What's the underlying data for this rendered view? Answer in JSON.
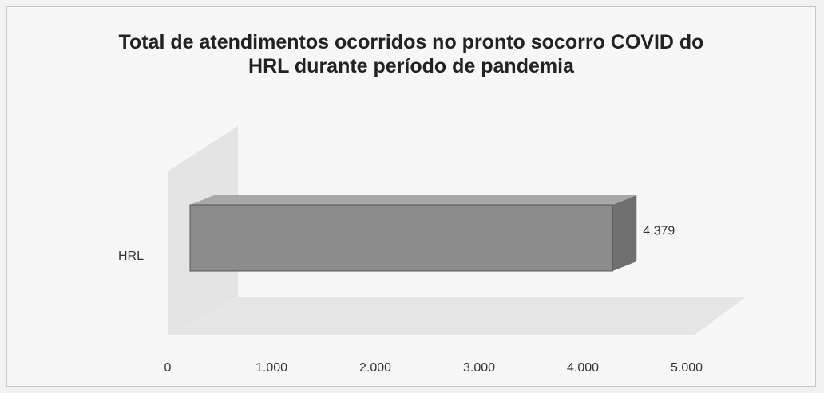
{
  "chart_data": {
    "type": "bar",
    "orientation": "horizontal",
    "title": "Total de atendimentos ocorridos no pronto socorro COVID do HRL durante período de pandemia",
    "categories": [
      "HRL"
    ],
    "values": [
      4379
    ],
    "value_labels": [
      "4.379"
    ],
    "color": "#8c8c8c",
    "xlim": [
      0,
      5000
    ],
    "xticks": [
      0,
      {
        "value": 1000,
        "label": "1.000"
      },
      {
        "value": 2000,
        "label": "2.000"
      },
      {
        "value": 3000,
        "label": "3.000"
      },
      {
        "value": 4000,
        "label": "4.000"
      },
      {
        "value": 5000,
        "label": "5.000"
      }
    ]
  }
}
